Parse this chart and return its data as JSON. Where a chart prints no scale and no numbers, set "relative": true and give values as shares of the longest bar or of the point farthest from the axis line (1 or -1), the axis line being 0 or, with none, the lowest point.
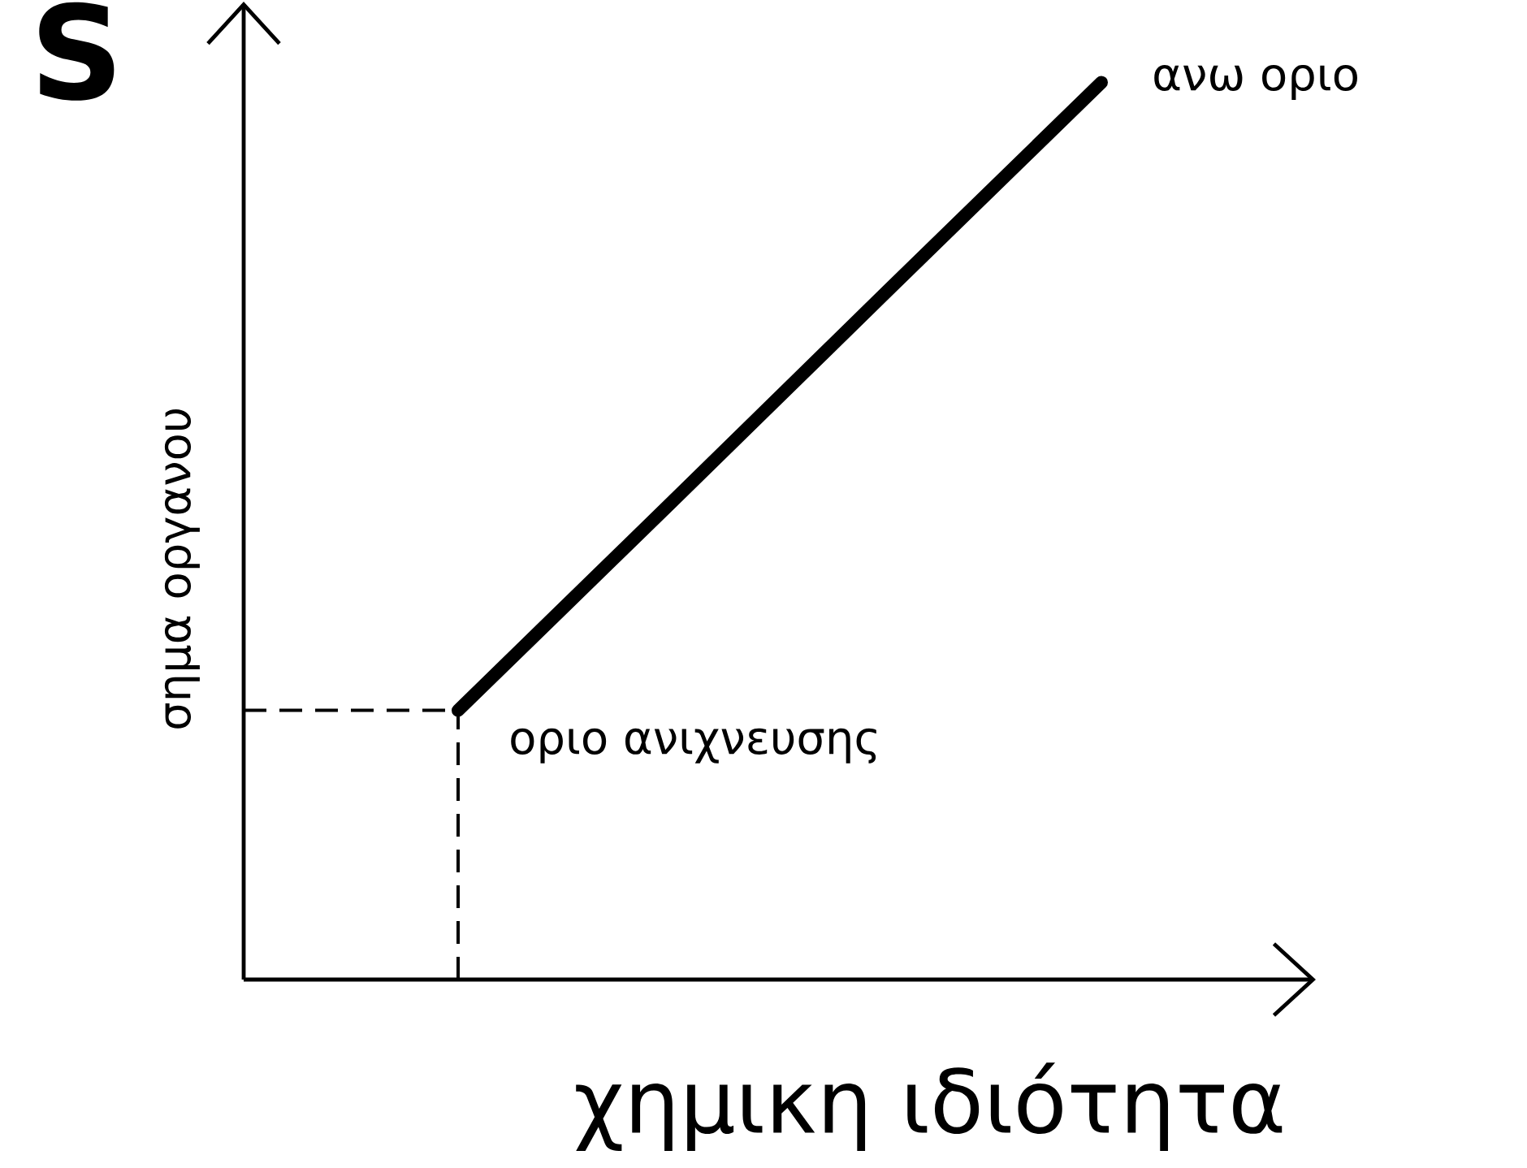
{
  "chart_data": {
    "type": "line",
    "relative": true,
    "categories": [
      null,
      null,
      null,
      null,
      null
    ],
    "xlabel": "χημικη ιδιότητα",
    "ylabel": "σημα οργανου",
    "series": [
      {
        "color": "#000000",
        "values": [
          null,
          0.3,
          0.533,
          0.767,
          1
        ]
      }
    ],
    "ref_lines": [
      {
        "axis": "y",
        "value": 0.3,
        "line_style": "dashed",
        "color": "#000000"
      }
    ],
    "annotations": [
      "S",
      "ανω οριο",
      "οριο ανιχνευσης"
    ],
    "marker": "none",
    "line_style": "solid"
  }
}
